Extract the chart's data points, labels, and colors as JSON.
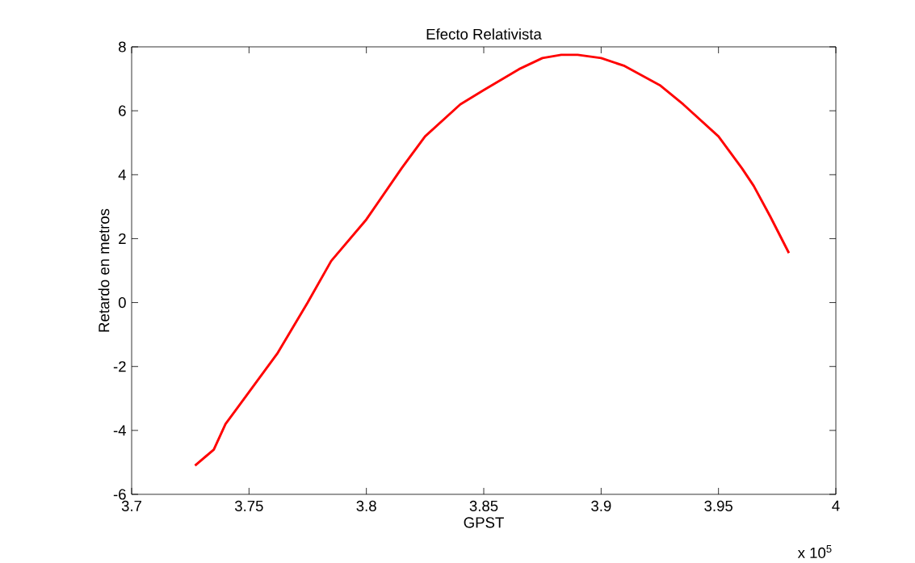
{
  "chart_data": {
    "type": "line",
    "title": "Efecto Relativista",
    "xlabel": "GPST",
    "ylabel": "Retardo en metros",
    "annotations": [
      "x 10$^{5}$"
    ],
    "xlim": [
      3.7,
      4
    ],
    "ylim": [
      -6,
      8
    ],
    "xticks": [
      3.7,
      3.75,
      3.8,
      3.85,
      3.9,
      3.95,
      4
    ],
    "yticks": [
      -6,
      -4,
      -2,
      0,
      2,
      4,
      6,
      8
    ],
    "grid": false,
    "marker": "none",
    "line_style": "solid",
    "series": [
      {
        "color": "#ff0000",
        "x": [
          3.727,
          3.735,
          3.74,
          3.75,
          3.762,
          3.775,
          3.785,
          3.8,
          3.815,
          3.825,
          3.84,
          3.85,
          3.865,
          3.875,
          3.883,
          3.89,
          3.9,
          3.91,
          3.925,
          3.935,
          3.95,
          3.96,
          3.965,
          3.972,
          3.98
        ],
        "values": [
          -5.1,
          -4.6,
          -3.8,
          -2.8,
          -1.6,
          0.0,
          1.3,
          2.6,
          4.2,
          5.2,
          6.2,
          6.65,
          7.3,
          7.65,
          7.75,
          7.75,
          7.65,
          7.4,
          6.8,
          6.2,
          5.2,
          4.2,
          3.65,
          2.7,
          1.55
        ]
      }
    ]
  }
}
